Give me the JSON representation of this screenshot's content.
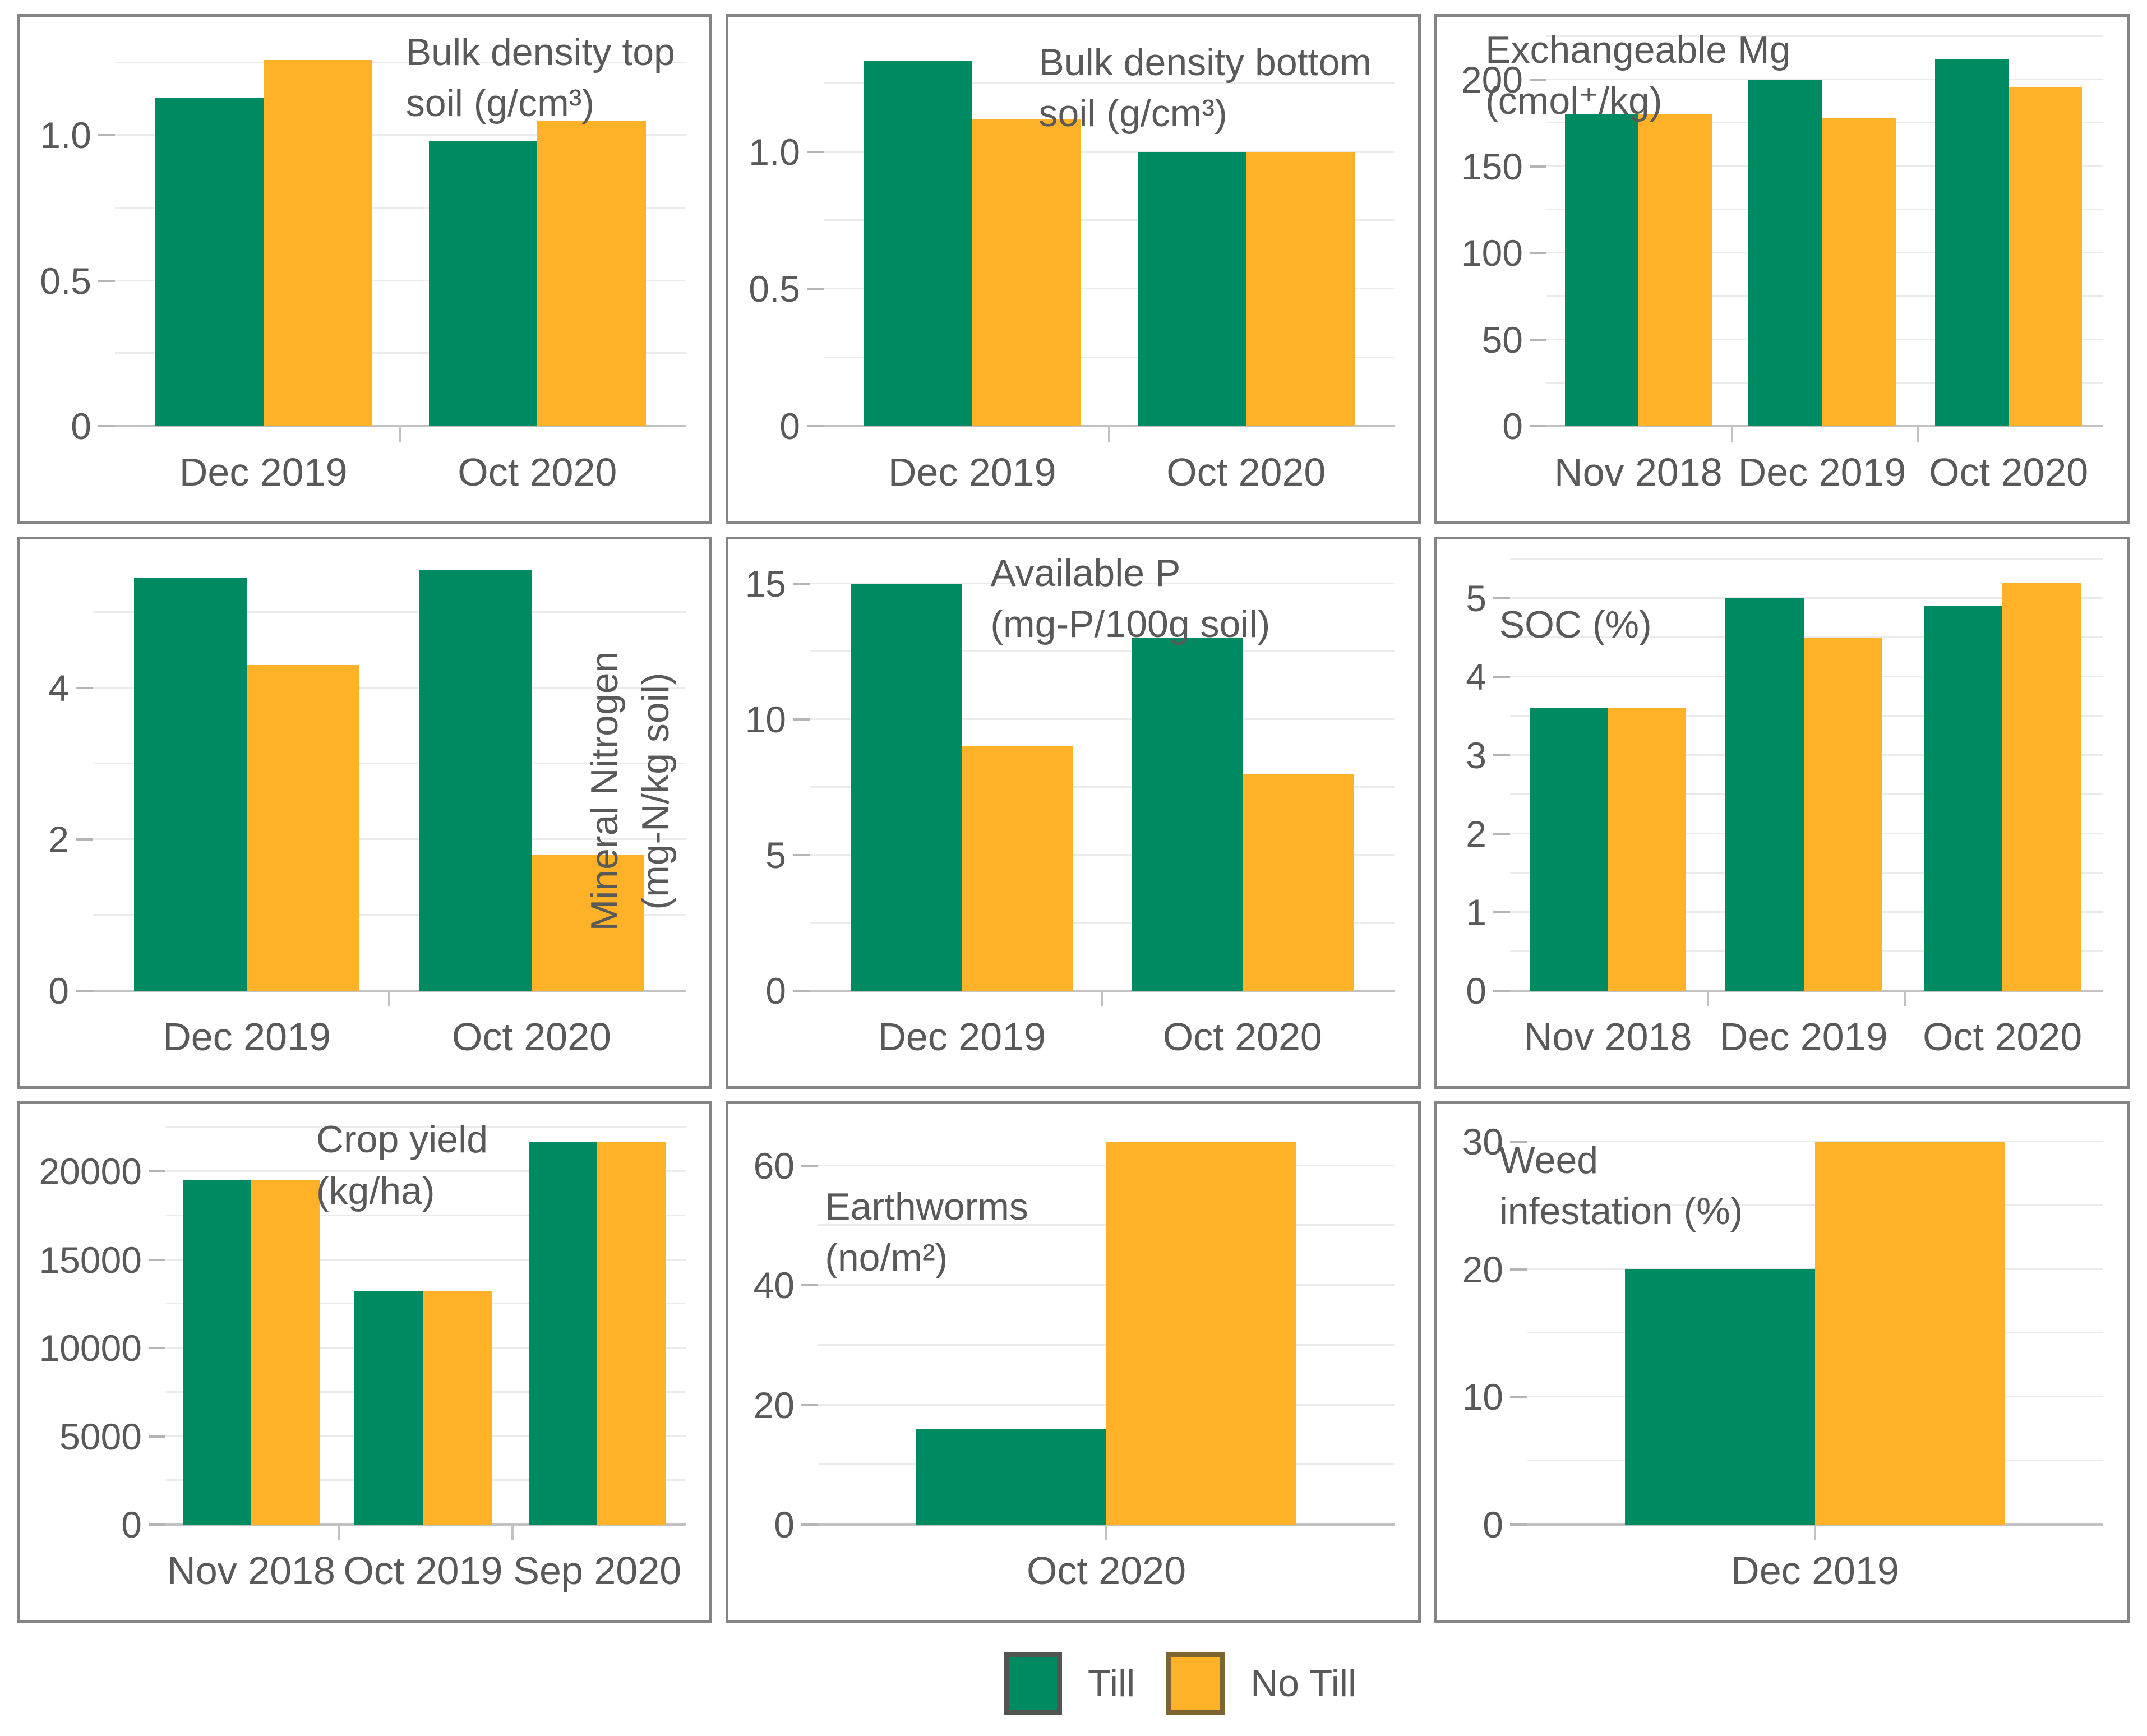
{
  "page": {
    "background": "#ffffff"
  },
  "colors": {
    "till": "#008A62",
    "no_till": "#FFB127",
    "text": "#595959",
    "grid": "#EBEBEB",
    "baseline": "#C2C2C2",
    "tick": "#B5B5B5",
    "panel_border": "#848484"
  },
  "legend": {
    "position": "bottom-center",
    "items": [
      {
        "label": "Till",
        "color": "#008A62",
        "border": "#50564F"
      },
      {
        "label": "No Till",
        "color": "#FFB127",
        "border": "#7C6530"
      }
    ]
  },
  "chart_data": [
    {
      "type": "bar",
      "title": "Bulk density top soil (g/cm³)",
      "title_lines": [
        "Bulk density top",
        "soil (g/cm³)"
      ],
      "title_pos": {
        "left_pct": 56,
        "top_pct": 2
      },
      "categories": [
        "Dec 2019",
        "Oct 2020"
      ],
      "series": [
        {
          "name": "Till",
          "values": [
            1.13,
            0.98
          ]
        },
        {
          "name": "No Till",
          "values": [
            1.26,
            1.05
          ]
        }
      ],
      "ylim": [
        0,
        1.34
      ],
      "yticks": [
        {
          "v": 0,
          "label": "0"
        },
        {
          "v": 0.5,
          "label": "0.5"
        },
        {
          "v": 1.0,
          "label": "1.0"
        }
      ],
      "grid_step": 0.25,
      "grid": true,
      "margins": {
        "left": 170
      }
    },
    {
      "type": "bar",
      "title": "Bulk density bottom soil (g/cm³)",
      "title_lines": [
        "Bulk density bottom",
        "soil (g/cm³)"
      ],
      "title_pos": {
        "left_pct": 45,
        "top_pct": 4
      },
      "categories": [
        "Dec 2019",
        "Oct 2020"
      ],
      "series": [
        {
          "name": "Till",
          "values": [
            1.33,
            1.0
          ]
        },
        {
          "name": "No Till",
          "values": [
            1.12,
            1.0
          ]
        }
      ],
      "ylim": [
        0,
        1.42
      ],
      "yticks": [
        {
          "v": 0,
          "label": "0"
        },
        {
          "v": 0.5,
          "label": "0.5"
        },
        {
          "v": 1.0,
          "label": "1.0"
        }
      ],
      "grid_step": 0.25,
      "grid": true,
      "margins": {
        "left": 170
      }
    },
    {
      "type": "bar",
      "title": "Exchangeable Mg (cmol⁺/kg)",
      "title_lines": [
        "Exchangeable Mg",
        "(cmol⁺/kg)"
      ],
      "title_pos": {
        "left_pct": 7,
        "top_pct": 1.5
      },
      "categories": [
        "Nov 2018",
        "Dec 2019",
        "Oct 2020"
      ],
      "series": [
        {
          "name": "Till",
          "values": [
            180,
            200,
            212
          ]
        },
        {
          "name": "No Till",
          "values": [
            180,
            178,
            196
          ]
        }
      ],
      "ylim": [
        0,
        225
      ],
      "yticks": [
        {
          "v": 0,
          "label": "0"
        },
        {
          "v": 50,
          "label": "50"
        },
        {
          "v": 100,
          "label": "100"
        },
        {
          "v": 150,
          "label": "150"
        },
        {
          "v": 200,
          "label": "200"
        }
      ],
      "grid_step": 25,
      "grid": true,
      "margins": {
        "left": 195
      }
    },
    {
      "type": "bar",
      "title": "Mineral Nitrogen (mg-N/kg soil)",
      "title_lines": [
        "Mineral Nitrogen",
        "(mg-N/kg soil)"
      ],
      "title_pos": {
        "left_pct": 88.5,
        "top_pct": 46
      },
      "title_rotated": true,
      "categories": [
        "Dec 2019",
        "Oct 2020"
      ],
      "series": [
        {
          "name": "Till",
          "values": [
            5.45,
            5.55
          ]
        },
        {
          "name": "No Till",
          "values": [
            4.3,
            1.8
          ]
        }
      ],
      "ylim": [
        0,
        5.7
      ],
      "yticks": [
        {
          "v": 0,
          "label": "0"
        },
        {
          "v": 2,
          "label": "2"
        },
        {
          "v": 4,
          "label": "4"
        }
      ],
      "grid_step": 1,
      "grid": true,
      "margins": {
        "left": 130
      }
    },
    {
      "type": "bar",
      "title": "Available P (mg-P/100g soil)",
      "title_lines": [
        "Available P",
        "(mg-P/100g soil)"
      ],
      "title_pos": {
        "left_pct": 38,
        "top_pct": 1.5
      },
      "categories": [
        "Dec 2019",
        "Oct 2020"
      ],
      "series": [
        {
          "name": "Till",
          "values": [
            15,
            13
          ]
        },
        {
          "name": "No Till",
          "values": [
            9,
            8
          ]
        }
      ],
      "ylim": [
        0,
        15.9
      ],
      "yticks": [
        {
          "v": 0,
          "label": "0"
        },
        {
          "v": 5,
          "label": "5"
        },
        {
          "v": 10,
          "label": "10"
        },
        {
          "v": 15,
          "label": "15"
        }
      ],
      "grid_step": 2.5,
      "grid": true,
      "margins": {
        "left": 145
      }
    },
    {
      "type": "bar",
      "title": "SOC (%)",
      "title_lines": [
        "SOC (%)"
      ],
      "title_pos": {
        "left_pct": 9,
        "top_pct": 11
      },
      "categories": [
        "Nov 2018",
        "Dec 2019",
        "Oct 2020"
      ],
      "series": [
        {
          "name": "Till",
          "values": [
            3.6,
            5.0,
            4.9
          ]
        },
        {
          "name": "No Till",
          "values": [
            3.6,
            4.5,
            5.2
          ]
        }
      ],
      "ylim": [
        0,
        5.5
      ],
      "yticks": [
        {
          "v": 0,
          "label": "0"
        },
        {
          "v": 1,
          "label": "1"
        },
        {
          "v": 2,
          "label": "2"
        },
        {
          "v": 3,
          "label": "3"
        },
        {
          "v": 4,
          "label": "4"
        },
        {
          "v": 5,
          "label": "5"
        }
      ],
      "grid_step": 0.5,
      "grid": true,
      "margins": {
        "left": 130
      }
    },
    {
      "type": "bar",
      "title": "Crop yield (kg/ha)",
      "title_lines": [
        "Crop yield",
        "(kg/ha)"
      ],
      "title_pos": {
        "left_pct": 43,
        "top_pct": 2
      },
      "categories": [
        "Nov 2018",
        "Oct 2019",
        "Sep 2020"
      ],
      "series": [
        {
          "name": "Till",
          "values": [
            19500,
            13200,
            21700
          ]
        },
        {
          "name": "No Till",
          "values": [
            19500,
            13200,
            21700
          ]
        }
      ],
      "ylim": [
        0,
        22700
      ],
      "yticks": [
        {
          "v": 0,
          "label": "0"
        },
        {
          "v": 5000,
          "label": "5000"
        },
        {
          "v": 10000,
          "label": "10000"
        },
        {
          "v": 15000,
          "label": "15000"
        },
        {
          "v": 20000,
          "label": "20000"
        }
      ],
      "grid_step": 2500,
      "grid": true,
      "margins": {
        "left": 260
      }
    },
    {
      "type": "bar",
      "title": "Earthworms (no/m²)",
      "title_lines": [
        "Earthworms",
        "(no/m²)"
      ],
      "title_pos": {
        "left_pct": 14,
        "top_pct": 15
      },
      "categories": [
        "Oct 2020"
      ],
      "series": [
        {
          "name": "Till",
          "values": [
            16
          ]
        },
        {
          "name": "No Till",
          "values": [
            64
          ]
        }
      ],
      "ylim": [
        0,
        67
      ],
      "yticks": [
        {
          "v": 0,
          "label": "0"
        },
        {
          "v": 20,
          "label": "20"
        },
        {
          "v": 40,
          "label": "40"
        },
        {
          "v": 60,
          "label": "60"
        }
      ],
      "grid_step": 10,
      "grid": true,
      "margins": {
        "left": 160
      }
    },
    {
      "type": "bar",
      "title": "Weed infestation (%)",
      "title_lines": [
        "Weed",
        "infestation (%)"
      ],
      "title_pos": {
        "left_pct": 9,
        "top_pct": 6
      },
      "categories": [
        "Dec 2019"
      ],
      "series": [
        {
          "name": "Till",
          "values": [
            20
          ]
        },
        {
          "name": "No Till",
          "values": [
            30
          ]
        }
      ],
      "ylim": [
        0,
        31.4
      ],
      "yticks": [
        {
          "v": 0,
          "label": "0"
        },
        {
          "v": 10,
          "label": "10"
        },
        {
          "v": 20,
          "label": "20"
        },
        {
          "v": 30,
          "label": "30"
        }
      ],
      "grid_step": 5,
      "grid": true,
      "margins": {
        "left": 160
      }
    }
  ]
}
